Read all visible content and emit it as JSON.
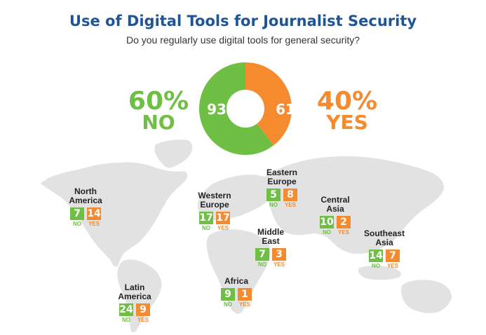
{
  "title": "Use of Digital Tools for Journalist Security",
  "subtitle": "Do you regularly use digital tools for general security?",
  "colors": {
    "no": "#6fbf44",
    "yes": "#f58a2f",
    "title": "#1f5597",
    "map": "#e2e2e2"
  },
  "summary": {
    "no_pct": "60%",
    "no_label": "NO",
    "yes_pct": "40%",
    "yes_label": "YES"
  },
  "chart_data": {
    "type": "pie",
    "title": "Use of Digital Tools for Journalist Security",
    "subtitle": "Do you regularly use digital tools for general security?",
    "donut": true,
    "slices": [
      {
        "label": "NO",
        "value": 93,
        "percent": "60%",
        "color": "#6fbf44"
      },
      {
        "label": "YES",
        "value": 61,
        "percent": "40%",
        "color": "#f58a2f"
      }
    ],
    "categories": [
      "NO",
      "YES"
    ],
    "values": [
      93,
      61
    ],
    "regions": [
      {
        "name": "North\nAmerica",
        "no": 7,
        "yes": 14
      },
      {
        "name": "Western\nEurope",
        "no": 17,
        "yes": 17
      },
      {
        "name": "Eastern\nEurope",
        "no": 5,
        "yes": 8
      },
      {
        "name": "Central\nAsia",
        "no": 10,
        "yes": 2
      },
      {
        "name": "Middle\nEast",
        "no": 7,
        "yes": 3
      },
      {
        "name": "Southeast\nAsia",
        "no": 14,
        "yes": 7
      },
      {
        "name": "Africa",
        "no": 9,
        "yes": 1
      },
      {
        "name": "Latin\nAmerica",
        "no": 24,
        "yes": 9
      }
    ],
    "region_labels": {
      "no": "NO",
      "yes": "YES"
    }
  }
}
